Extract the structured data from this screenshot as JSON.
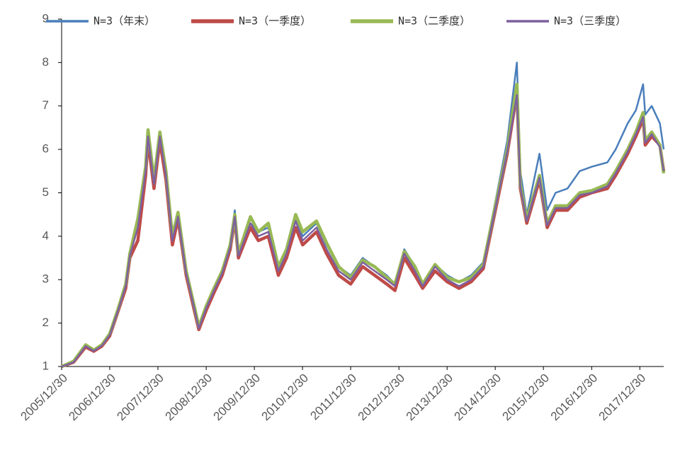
{
  "chart_data": {
    "type": "line",
    "x": [
      "2005/12/30",
      "2006/03/31",
      "2006/06/30",
      "2006/08/31",
      "2006/10/31",
      "2006/12/29",
      "2007/02/28",
      "2007/04/30",
      "2007/05/31",
      "2007/07/31",
      "2007/09/28",
      "2007/10/16",
      "2007/11/30",
      "2008/01/14",
      "2008/02/29",
      "2008/04/18",
      "2008/05/30",
      "2008/07/31",
      "2008/09/30",
      "2008/11/04",
      "2008/12/31",
      "2009/02/27",
      "2009/04/30",
      "2009/06/30",
      "2009/08/04",
      "2009/08/31",
      "2009/11/30",
      "2010/01/29",
      "2010/04/15",
      "2010/06/30",
      "2010/08/31",
      "2010/11/08",
      "2010/12/31",
      "2011/04/15",
      "2011/06/30",
      "2011/09/30",
      "2011/12/30",
      "2012/03/30",
      "2012/06/29",
      "2012/09/28",
      "2012/11/30",
      "2013/02/08",
      "2013/04/30",
      "2013/06/28",
      "2013/09/30",
      "2013/12/31",
      "2014/03/31",
      "2014/06/30",
      "2014/09/30",
      "2014/12/31",
      "2015/03/31",
      "2015/06/12",
      "2015/07/08",
      "2015/08/26",
      "2015/11/30",
      "2016/01/28",
      "2016/03/31",
      "2016/06/30",
      "2016/09/30",
      "2016/12/30",
      "2017/04/28",
      "2017/06/30",
      "2017/09/29",
      "2017/11/30",
      "2018/01/24",
      "2018/02/09",
      "2018/03/30",
      "2018/05/31",
      "2018/06/29"
    ],
    "series": [
      {
        "name": "N=3（年末）",
        "color": "#4a7ebb",
        "width": 2.5,
        "values": [
          1.0,
          1.12,
          1.48,
          1.38,
          1.5,
          1.75,
          2.3,
          2.9,
          3.6,
          4.3,
          5.6,
          6.4,
          5.3,
          6.35,
          5.5,
          4.0,
          4.5,
          3.2,
          2.4,
          1.9,
          2.35,
          2.8,
          3.2,
          3.8,
          4.6,
          3.6,
          4.3,
          4.1,
          4.2,
          3.3,
          3.6,
          4.4,
          4.0,
          4.3,
          3.8,
          3.3,
          3.1,
          3.5,
          3.3,
          3.1,
          2.9,
          3.7,
          3.3,
          2.9,
          3.35,
          3.1,
          2.95,
          3.1,
          3.4,
          4.8,
          6.2,
          8.0,
          5.5,
          4.5,
          5.9,
          4.6,
          5.0,
          5.1,
          5.5,
          5.6,
          5.7,
          6.0,
          6.6,
          6.9,
          7.5,
          6.8,
          7.0,
          6.6,
          6.0
        ]
      },
      {
        "name": "N=3（一季度）",
        "color": "#be4b48",
        "width": 4.5,
        "values": [
          1.0,
          1.1,
          1.45,
          1.35,
          1.47,
          1.7,
          2.25,
          2.8,
          3.5,
          3.9,
          5.4,
          6.2,
          5.1,
          6.2,
          5.3,
          3.8,
          4.4,
          3.1,
          2.3,
          1.85,
          2.3,
          2.7,
          3.1,
          3.7,
          4.4,
          3.5,
          4.2,
          3.9,
          4.0,
          3.1,
          3.5,
          4.2,
          3.8,
          4.1,
          3.6,
          3.1,
          2.9,
          3.3,
          3.1,
          2.9,
          2.75,
          3.5,
          3.1,
          2.8,
          3.2,
          2.95,
          2.8,
          2.95,
          3.25,
          4.6,
          5.9,
          7.3,
          5.1,
          4.3,
          5.3,
          4.2,
          4.6,
          4.6,
          4.9,
          5.0,
          5.1,
          5.4,
          5.9,
          6.3,
          6.7,
          6.1,
          6.3,
          6.1,
          5.5
        ]
      },
      {
        "name": "N=3（二季度）",
        "color": "#98b954",
        "width": 4.5,
        "values": [
          1.0,
          1.12,
          1.5,
          1.38,
          1.5,
          1.75,
          2.3,
          2.9,
          3.6,
          4.4,
          5.6,
          6.45,
          5.3,
          6.4,
          5.5,
          4.0,
          4.55,
          3.2,
          2.4,
          1.92,
          2.4,
          2.8,
          3.2,
          3.8,
          4.5,
          3.6,
          4.45,
          4.1,
          4.3,
          3.3,
          3.7,
          4.5,
          4.1,
          4.35,
          3.85,
          3.3,
          3.05,
          3.45,
          3.3,
          3.05,
          2.9,
          3.65,
          3.3,
          2.9,
          3.35,
          3.05,
          2.95,
          3.05,
          3.35,
          4.7,
          6.0,
          7.5,
          5.2,
          4.4,
          5.4,
          4.3,
          4.7,
          4.7,
          5.0,
          5.05,
          5.2,
          5.5,
          6.0,
          6.4,
          6.85,
          6.2,
          6.4,
          6.1,
          5.45
        ]
      },
      {
        "name": "N=3（三季度）",
        "color": "#7d60a0",
        "width": 2.5,
        "values": [
          1.0,
          1.1,
          1.47,
          1.36,
          1.48,
          1.72,
          2.27,
          2.85,
          3.55,
          4.2,
          5.5,
          6.3,
          5.2,
          6.3,
          5.4,
          3.9,
          4.45,
          3.15,
          2.35,
          1.88,
          2.35,
          2.75,
          3.15,
          3.75,
          4.45,
          3.55,
          4.3,
          4.0,
          4.1,
          3.2,
          3.6,
          4.35,
          3.9,
          4.2,
          3.7,
          3.2,
          3.0,
          3.4,
          3.2,
          3.0,
          2.85,
          3.6,
          3.2,
          2.85,
          3.3,
          3.0,
          2.85,
          3.0,
          3.3,
          4.65,
          5.95,
          7.25,
          5.15,
          4.35,
          5.35,
          4.25,
          4.65,
          4.65,
          4.95,
          5.0,
          5.15,
          5.45,
          5.95,
          6.35,
          6.75,
          6.15,
          6.35,
          6.05,
          5.5
        ]
      }
    ],
    "xlim": [
      "2005/12/30",
      "2018/06/29"
    ],
    "xticks": [
      "2005/12/30",
      "2006/12/30",
      "2007/12/30",
      "2008/12/30",
      "2009/12/30",
      "2010/12/30",
      "2011/12/30",
      "2012/12/30",
      "2013/12/30",
      "2014/12/30",
      "2015/12/30",
      "2016/12/30",
      "2017/12/30"
    ],
    "ylim": [
      1,
      9
    ],
    "yticks": [
      1,
      2,
      3,
      4,
      5,
      6,
      7,
      8,
      9
    ],
    "grid": false,
    "legend": "top"
  }
}
